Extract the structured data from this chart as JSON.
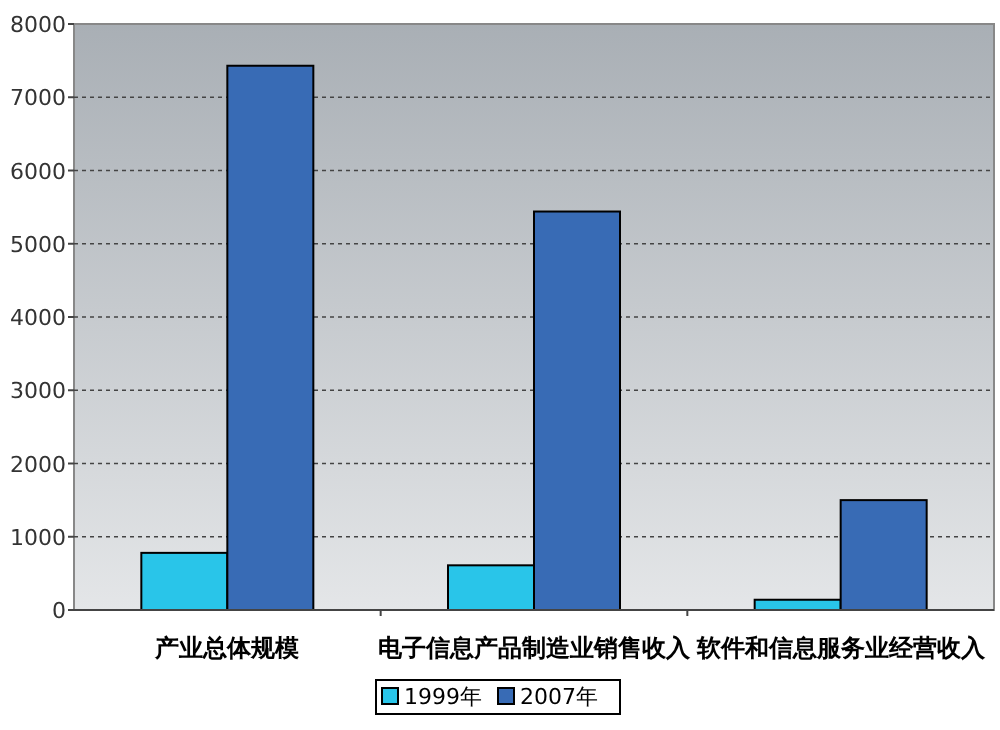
{
  "chart_data": {
    "type": "bar",
    "categories": [
      "产业总体规模",
      "电子信息产品制造业销售收入",
      "软件和信息服务业经营收入"
    ],
    "series": [
      {
        "name": "1999年",
        "color": "#29c5e9",
        "values": [
          780,
          610,
          140
        ]
      },
      {
        "name": "2007年",
        "color": "#386bb5",
        "values": [
          7430,
          5440,
          1500
        ]
      }
    ],
    "ylim": [
      0,
      8000
    ],
    "yticks": [
      0,
      1000,
      2000,
      3000,
      4000,
      5000,
      6000,
      7000,
      8000
    ],
    "grid": "y",
    "legend": "bottom"
  }
}
